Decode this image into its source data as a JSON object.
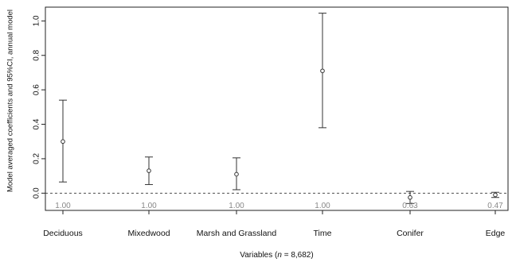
{
  "chart_data": {
    "type": "scatter",
    "ylabel": "Model averaged coefficients and 95%CI, annual model",
    "xlabel": {
      "prefix": "Variables (",
      "italic": "n",
      "suffix": " = 8,682)"
    },
    "ylim": [
      -0.1,
      1.08
    ],
    "yticks": [
      "0.0",
      "0.2",
      "0.4",
      "0.6",
      "0.8",
      "1.0"
    ],
    "reference_line": 0,
    "categories": [
      "Deciduous",
      "Mixedwood",
      "Marsh and Grassland",
      "Time",
      "Conifer",
      "Edge"
    ],
    "estimates": [
      0.3,
      0.13,
      0.11,
      0.71,
      -0.025,
      -0.01
    ],
    "ci_lower": [
      0.065,
      0.05,
      0.02,
      0.38,
      -0.06,
      -0.025
    ],
    "ci_upper": [
      0.54,
      0.21,
      0.205,
      1.045,
      0.01,
      0.005
    ],
    "weights": [
      "1.00",
      "1.00",
      "1.00",
      "1.00",
      "0.63",
      "0.47"
    ]
  }
}
